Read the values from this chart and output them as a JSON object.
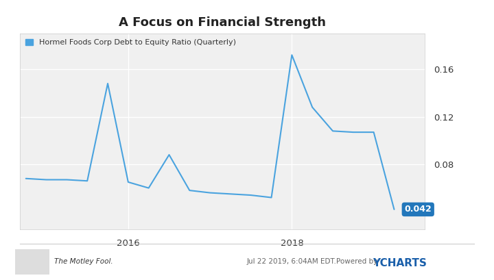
{
  "title": "A Focus on Financial Strength",
  "legend_label": "Hormel Foods Corp Debt to Equity Ratio (Quarterly)",
  "line_color": "#4aa3df",
  "background_color": "#f0f0f0",
  "outer_background": "#ffffff",
  "last_value": "0.042",
  "last_value_bg": "#2277bb",
  "x_dates": [
    0,
    1,
    2,
    3,
    4,
    5,
    6,
    7,
    8,
    9,
    10,
    11,
    12,
    13,
    14,
    15,
    16,
    17,
    18
  ],
  "y_vals": [
    0.068,
    0.067,
    0.067,
    0.066,
    0.148,
    0.065,
    0.06,
    0.088,
    0.058,
    0.056,
    0.055,
    0.054,
    0.052,
    0.172,
    0.128,
    0.108,
    0.107,
    0.107,
    0.042
  ],
  "x_tick_positions": [
    5,
    13
  ],
  "x_tick_labels": [
    "2016",
    "2018"
  ],
  "yticks": [
    0.08,
    0.12,
    0.16
  ],
  "ytick_labels": [
    "0.08",
    "0.12",
    "0.16"
  ],
  "ylim_low": 0.025,
  "ylim_high": 0.19,
  "xlim_low": -0.3,
  "xlim_high": 19.5,
  "footer_date": "Jul 22 2019, 6:04AM EDT.",
  "footer_powered": "Powered by",
  "footer_ycharts": "YCHARTS"
}
